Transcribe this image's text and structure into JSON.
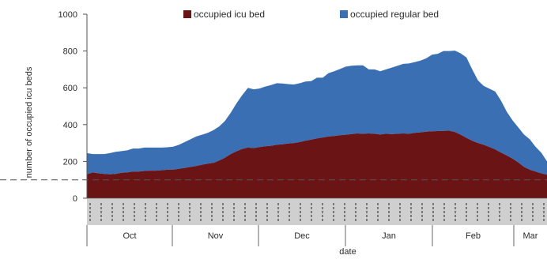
{
  "chart_data": {
    "type": "area",
    "stacked": true,
    "title": "",
    "xlabel": "date",
    "ylabel": "number of occupied icu beds",
    "ylim": [
      0,
      1000
    ],
    "yticks": [
      0,
      200,
      400,
      600,
      800,
      1000
    ],
    "grid": false,
    "legend_position": "top",
    "reference_line": {
      "y": 100,
      "style": "dashed",
      "color": "#555555"
    },
    "months": [
      "Oct",
      "Nov",
      "Dec",
      "Jan",
      "Feb",
      "Mar"
    ],
    "series": [
      {
        "name": "occupied icu bed",
        "color": "#6b1416",
        "points": [
          [
            0,
            130
          ],
          [
            5,
            140
          ],
          [
            10,
            135
          ],
          [
            15,
            132
          ],
          [
            20,
            130
          ],
          [
            25,
            132
          ],
          [
            30,
            138
          ],
          [
            35,
            140
          ],
          [
            40,
            145
          ],
          [
            45,
            145
          ],
          [
            50,
            148
          ],
          [
            55,
            150
          ],
          [
            60,
            150
          ],
          [
            65,
            152
          ],
          [
            70,
            155
          ],
          [
            75,
            155
          ],
          [
            80,
            160
          ],
          [
            85,
            165
          ],
          [
            90,
            170
          ],
          [
            95,
            175
          ],
          [
            100,
            182
          ],
          [
            105,
            188
          ],
          [
            110,
            192
          ],
          [
            115,
            205
          ],
          [
            120,
            220
          ],
          [
            125,
            240
          ],
          [
            130,
            255
          ],
          [
            135,
            268
          ],
          [
            140,
            275
          ],
          [
            145,
            272
          ],
          [
            150,
            278
          ],
          [
            155,
            282
          ],
          [
            160,
            285
          ],
          [
            165,
            290
          ],
          [
            170,
            293
          ],
          [
            175,
            297
          ],
          [
            180,
            300
          ],
          [
            185,
            305
          ],
          [
            190,
            312
          ],
          [
            195,
            318
          ],
          [
            200,
            325
          ],
          [
            205,
            330
          ],
          [
            210,
            335
          ],
          [
            215,
            338
          ],
          [
            220,
            342
          ],
          [
            225,
            345
          ],
          [
            230,
            348
          ],
          [
            235,
            352
          ],
          [
            240,
            350
          ],
          [
            245,
            352
          ],
          [
            250,
            350
          ],
          [
            255,
            346
          ],
          [
            260,
            350
          ],
          [
            265,
            348
          ],
          [
            270,
            350
          ],
          [
            275,
            352
          ],
          [
            280,
            350
          ],
          [
            285,
            355
          ],
          [
            290,
            358
          ],
          [
            295,
            362
          ],
          [
            300,
            364
          ],
          [
            305,
            365
          ],
          [
            310,
            366
          ],
          [
            315,
            367
          ],
          [
            320,
            360
          ],
          [
            325,
            345
          ],
          [
            330,
            328
          ],
          [
            335,
            312
          ],
          [
            340,
            300
          ],
          [
            345,
            290
          ],
          [
            350,
            278
          ],
          [
            355,
            265
          ],
          [
            360,
            248
          ],
          [
            365,
            232
          ],
          [
            370,
            215
          ],
          [
            375,
            195
          ],
          [
            380,
            170
          ],
          [
            385,
            155
          ],
          [
            390,
            145
          ],
          [
            395,
            135
          ],
          [
            400,
            128
          ]
        ]
      },
      {
        "name": "occupied regular bed",
        "color": "#3a6fb4",
        "points": [
          [
            0,
            115
          ],
          [
            5,
            100
          ],
          [
            10,
            105
          ],
          [
            15,
            108
          ],
          [
            20,
            115
          ],
          [
            25,
            120
          ],
          [
            30,
            118
          ],
          [
            35,
            120
          ],
          [
            40,
            125
          ],
          [
            45,
            125
          ],
          [
            50,
            127
          ],
          [
            55,
            125
          ],
          [
            60,
            125
          ],
          [
            65,
            123
          ],
          [
            70,
            122
          ],
          [
            75,
            125
          ],
          [
            80,
            130
          ],
          [
            85,
            140
          ],
          [
            90,
            150
          ],
          [
            95,
            160
          ],
          [
            100,
            163
          ],
          [
            105,
            167
          ],
          [
            110,
            178
          ],
          [
            115,
            185
          ],
          [
            120,
            200
          ],
          [
            125,
            225
          ],
          [
            130,
            260
          ],
          [
            135,
            292
          ],
          [
            140,
            325
          ],
          [
            145,
            320
          ],
          [
            150,
            318
          ],
          [
            155,
            325
          ],
          [
            160,
            330
          ],
          [
            165,
            335
          ],
          [
            170,
            330
          ],
          [
            175,
            323
          ],
          [
            180,
            318
          ],
          [
            185,
            320
          ],
          [
            190,
            322
          ],
          [
            195,
            318
          ],
          [
            200,
            330
          ],
          [
            205,
            325
          ],
          [
            210,
            345
          ],
          [
            215,
            352
          ],
          [
            220,
            360
          ],
          [
            225,
            370
          ],
          [
            230,
            372
          ],
          [
            235,
            370
          ],
          [
            240,
            372
          ],
          [
            245,
            348
          ],
          [
            250,
            350
          ],
          [
            255,
            344
          ],
          [
            260,
            350
          ],
          [
            265,
            362
          ],
          [
            270,
            370
          ],
          [
            275,
            378
          ],
          [
            280,
            382
          ],
          [
            285,
            385
          ],
          [
            290,
            390
          ],
          [
            295,
            398
          ],
          [
            300,
            416
          ],
          [
            305,
            420
          ],
          [
            310,
            434
          ],
          [
            315,
            433
          ],
          [
            320,
            442
          ],
          [
            325,
            442
          ],
          [
            330,
            437
          ],
          [
            335,
            388
          ],
          [
            340,
            340
          ],
          [
            345,
            320
          ],
          [
            350,
            317
          ],
          [
            355,
            315
          ],
          [
            360,
            282
          ],
          [
            365,
            238
          ],
          [
            370,
            208
          ],
          [
            375,
            190
          ],
          [
            380,
            176
          ],
          [
            385,
            165
          ],
          [
            390,
            135
          ],
          [
            395,
            113
          ],
          [
            400,
            72
          ]
        ]
      }
    ]
  }
}
